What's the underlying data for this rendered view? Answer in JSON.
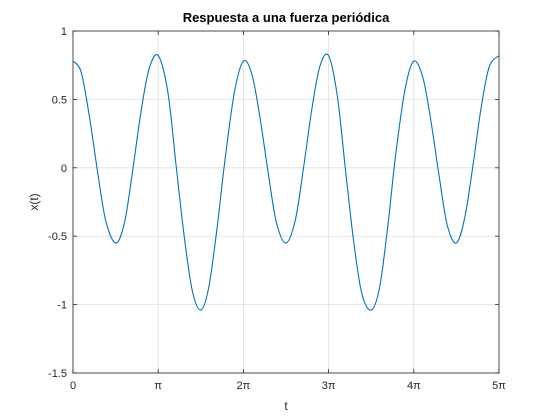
{
  "chart_data": {
    "type": "line",
    "title": "Respuesta a una fuerza periódica",
    "xlabel": "t",
    "ylabel": "x(t)",
    "xlim": [
      0,
      15.708
    ],
    "ylim": [
      -1.5,
      1
    ],
    "grid": true,
    "x_ticks": [
      {
        "value": 0,
        "label": "0"
      },
      {
        "value": 3.1416,
        "label": "π"
      },
      {
        "value": 6.2832,
        "label": "2π"
      },
      {
        "value": 9.4248,
        "label": "3π"
      },
      {
        "value": 12.5664,
        "label": "4π"
      },
      {
        "value": 15.708,
        "label": "5π"
      }
    ],
    "y_ticks": [
      {
        "value": 1,
        "label": "1"
      },
      {
        "value": 0.5,
        "label": "0.5"
      },
      {
        "value": 0,
        "label": "0"
      },
      {
        "value": -0.5,
        "label": "-0.5"
      },
      {
        "value": -1,
        "label": "-1"
      },
      {
        "value": -1.5,
        "label": "-1.5"
      }
    ],
    "series": [
      {
        "color": "#0072bd",
        "x": [
          0,
          0.3,
          0.6,
          0.9,
          1.2,
          1.5708,
          1.9,
          2.2,
          2.5,
          2.8,
          3.1416,
          3.5,
          3.8,
          4.1,
          4.4,
          4.7124,
          5.0,
          5.3,
          5.6,
          5.95,
          6.2832,
          6.6,
          6.9,
          7.2,
          7.5,
          7.854,
          8.2,
          8.5,
          8.8,
          9.1,
          9.4248,
          9.75,
          10.05,
          10.35,
          10.65,
          10.9956,
          11.3,
          11.6,
          11.9,
          12.25,
          12.5664,
          12.9,
          13.2,
          13.5,
          13.8,
          14.1372,
          14.45,
          14.75,
          15.05,
          15.35,
          15.708
        ],
        "y": [
          0.78,
          0.7,
          0.38,
          -0.02,
          -0.38,
          -0.55,
          -0.4,
          -0.02,
          0.4,
          0.72,
          0.82,
          0.55,
          0.02,
          -0.5,
          -0.9,
          -1.04,
          -0.88,
          -0.46,
          0.05,
          0.55,
          0.78,
          0.68,
          0.36,
          -0.04,
          -0.4,
          -0.55,
          -0.38,
          0.0,
          0.42,
          0.74,
          0.82,
          0.52,
          -0.02,
          -0.54,
          -0.92,
          -1.04,
          -0.88,
          -0.44,
          0.1,
          0.58,
          0.78,
          0.66,
          0.34,
          -0.06,
          -0.42,
          -0.55,
          -0.36,
          0.02,
          0.44,
          0.74,
          0.82
        ]
      }
    ]
  }
}
